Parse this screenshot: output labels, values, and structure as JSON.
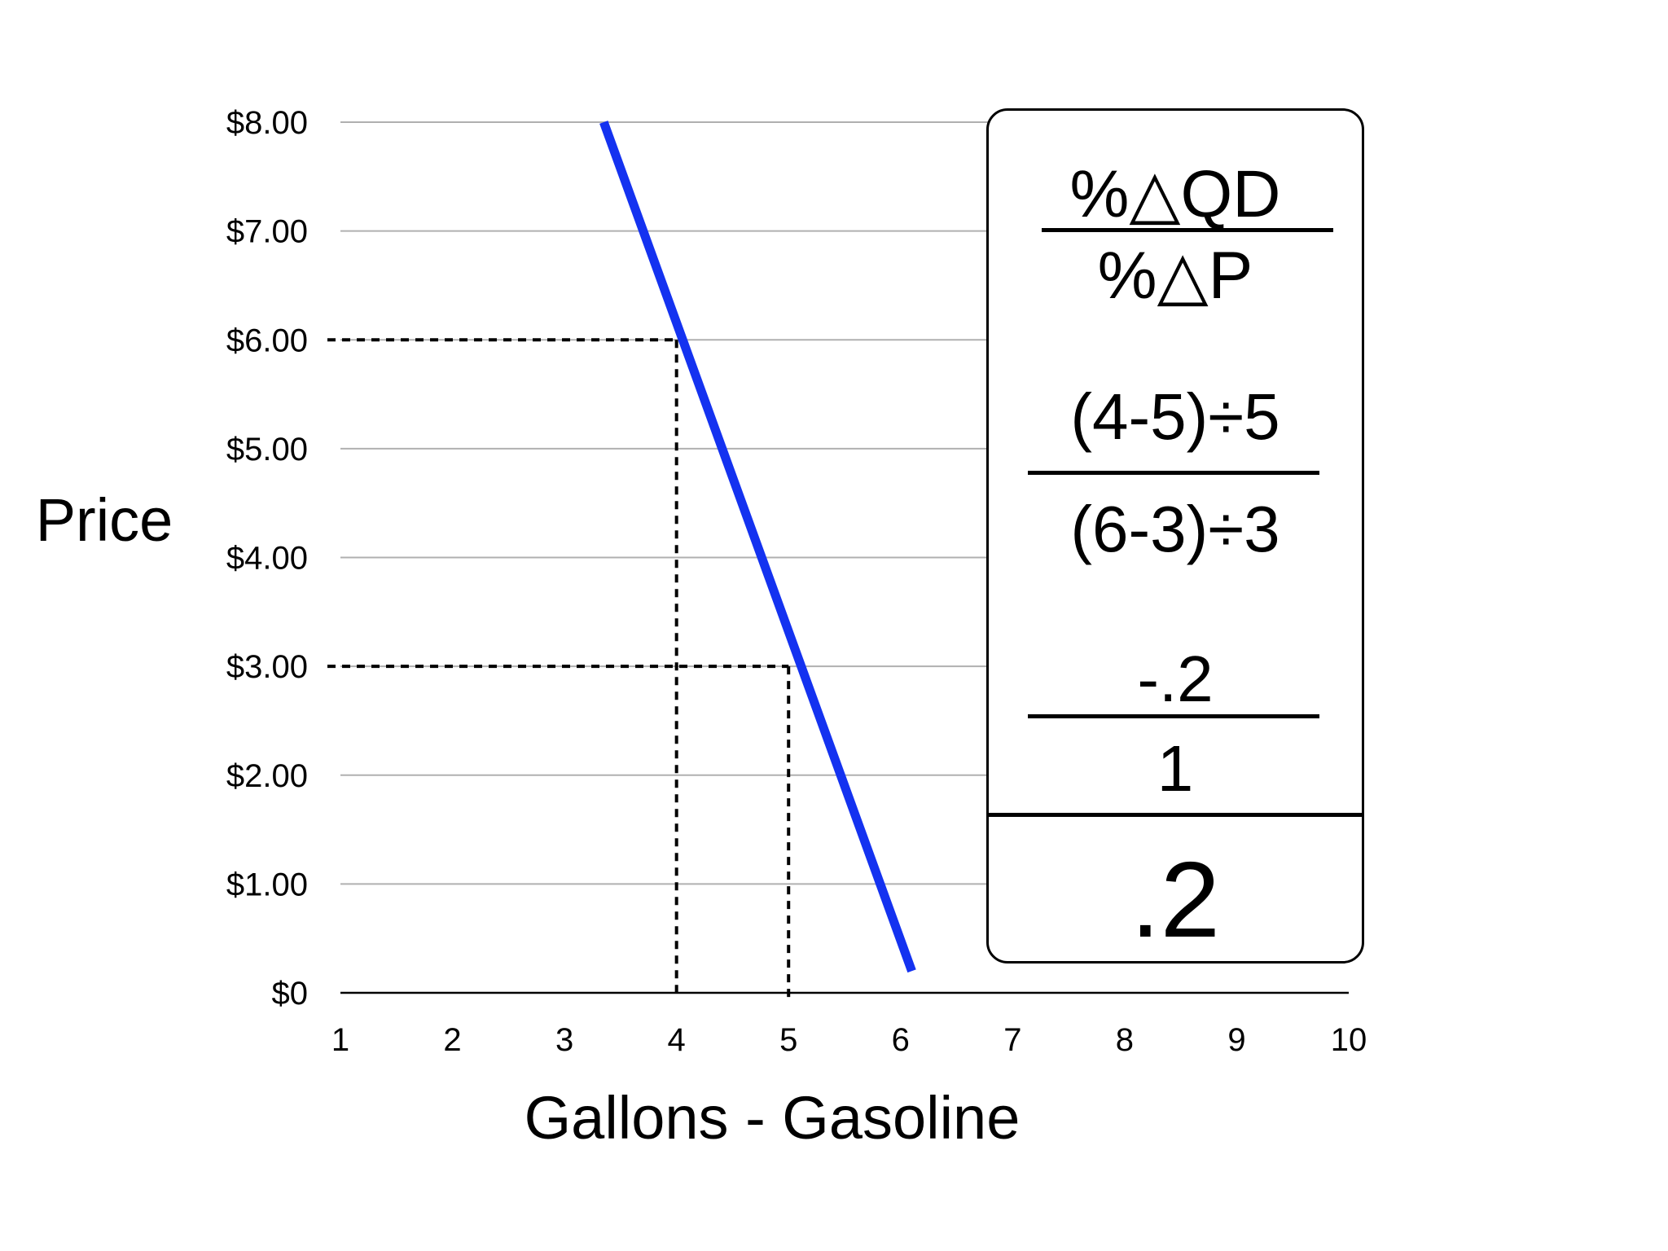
{
  "chart_data": {
    "type": "line",
    "xlabel": "Gallons - Gasoline",
    "ylabel": "Price",
    "x_ticks": [
      "1",
      "2",
      "3",
      "4",
      "5",
      "6",
      "7",
      "8",
      "9",
      "10"
    ],
    "y_ticks": [
      "$0",
      "$1.00",
      "$2.00",
      "$3.00",
      "$4.00",
      "$5.00",
      "$6.00",
      "$7.00",
      "$8.00"
    ],
    "xlim": [
      1,
      10
    ],
    "ylim": [
      0,
      8
    ],
    "grid": "horizontal",
    "series": [
      {
        "color": "#1432f0",
        "x": [
          3.35,
          6.1
        ],
        "y": [
          8.0,
          0.2
        ]
      }
    ],
    "reference_points": [
      {
        "x": 4,
        "y": 6
      },
      {
        "x": 5,
        "y": 3
      }
    ]
  },
  "formula": {
    "general_numerator": "%△QD",
    "general_denominator": "%△P",
    "applied_numerator": "(4-5)÷5",
    "applied_denominator": "(6-3)÷3",
    "computed_numerator": "-.2",
    "computed_denominator": "1",
    "result": ".2"
  },
  "colors": {
    "demand_line": "#1432f0",
    "grid": "#b0b0b0",
    "axis": "#000000"
  }
}
